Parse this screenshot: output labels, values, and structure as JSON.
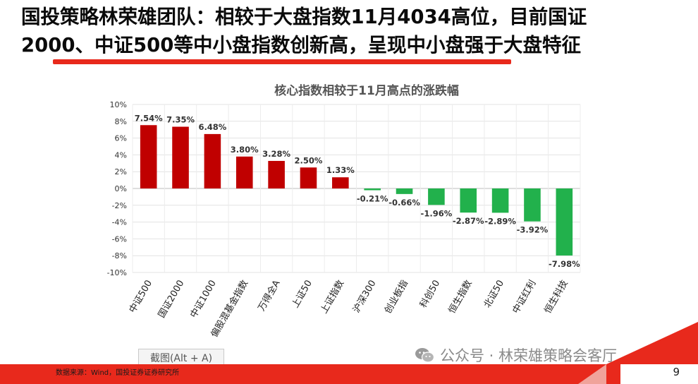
{
  "headline": {
    "line1": "国投策略林荣雄团队：相较于大盘指数11月4034高位，目前国证",
    "line2": "2000、中证500等中小盘指数创新高，呈现中小盘强于大盘特征"
  },
  "colors": {
    "accent": "#e8291c",
    "positive": "#c00000",
    "negative": "#22b14c"
  },
  "chart_data": {
    "type": "bar",
    "title": "核心指数相较于11月高点的涨跌幅",
    "xlabel": "",
    "ylabel": "",
    "categories": [
      "中证500",
      "国证2000",
      "中证1000",
      "偏股混基金指数",
      "万得全A",
      "上证50",
      "上证指数",
      "沪深300",
      "创业板指",
      "科创50",
      "恒生指数",
      "北证50",
      "中证红利",
      "恒生科技"
    ],
    "values": [
      7.54,
      7.35,
      6.48,
      3.8,
      3.28,
      2.5,
      1.33,
      -0.21,
      -0.66,
      -1.96,
      -2.87,
      -2.89,
      -3.92,
      -7.98
    ],
    "data_labels": [
      "7.54%",
      "7.35%",
      "6.48%",
      "3.80%",
      "3.28%",
      "2.50%",
      "1.33%",
      "-0.21%",
      "-0.66%",
      "-1.96%",
      "-2.87%",
      "-2.89%",
      "-3.92%",
      "-7.98%"
    ],
    "yticks": [
      10,
      8,
      6,
      4,
      2,
      0,
      -2,
      -4,
      -6,
      -8,
      -10
    ],
    "ytick_labels": [
      "10%",
      "8%",
      "6%",
      "4%",
      "2%",
      "0%",
      "-2%",
      "-4%",
      "-6%",
      "-8%",
      "-10%"
    ],
    "ylim": [
      -10,
      10
    ],
    "grid": true,
    "legend": "none"
  },
  "snip_hint": "截图(Alt + A)",
  "watermark": "公众号 · 林荣雄策略会客厅",
  "wechat_icon": "wechat-icon",
  "source": "数据来源：Wind，国投证券证券研究所",
  "page_number": "9"
}
